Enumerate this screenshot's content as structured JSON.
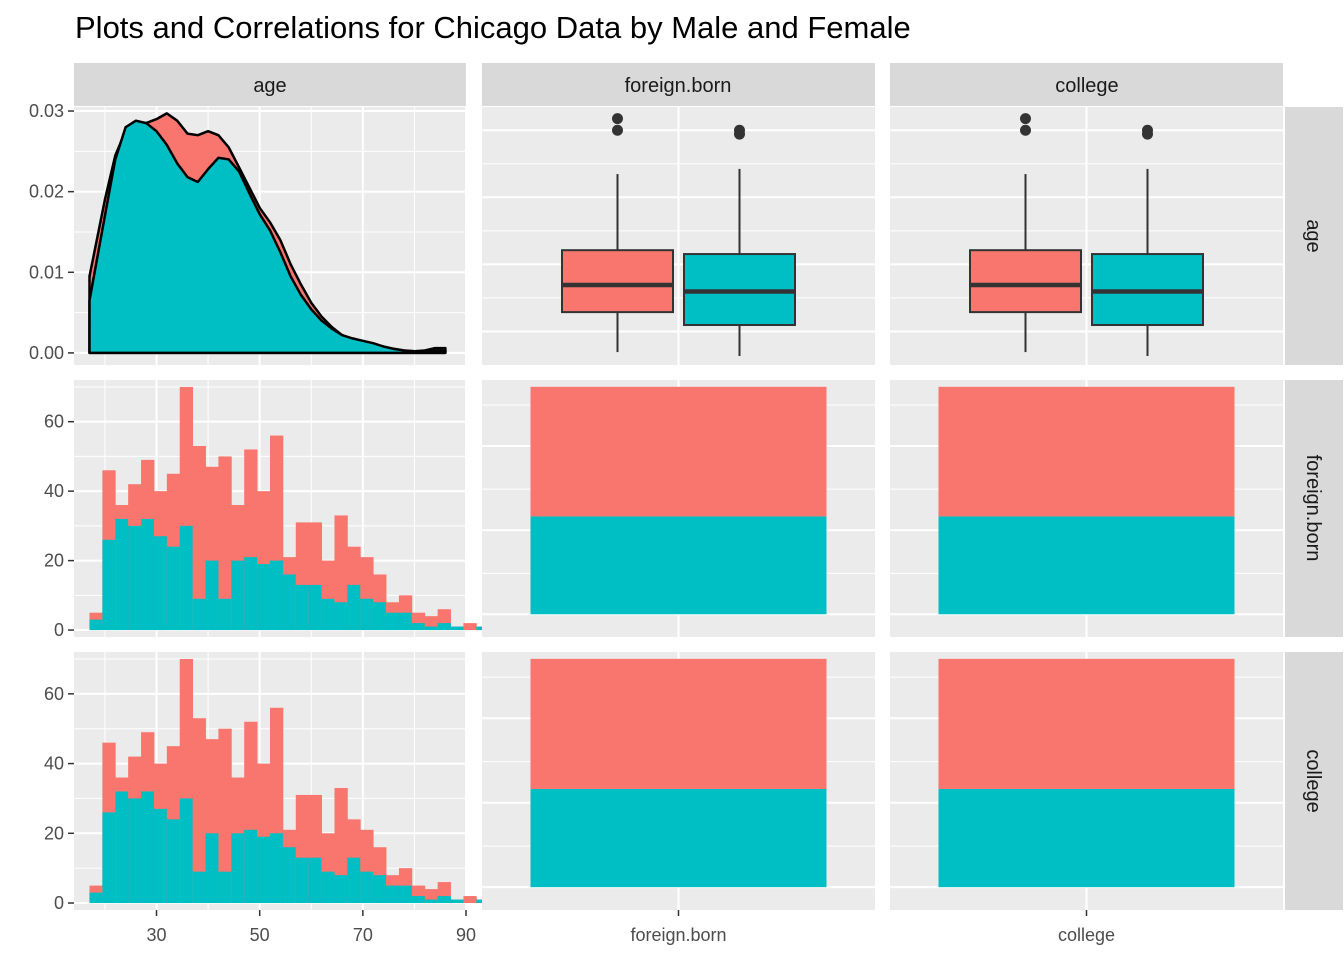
{
  "chart_data": {
    "type": "pairs-matrix",
    "title": "Plots and Correlations for Chicago Data by Male and Female",
    "variables": [
      "age",
      "foreign.born",
      "college"
    ],
    "colors": {
      "red": "#F8766D",
      "teal": "#00BFC4",
      "panel_bg": "#EBEBEB",
      "strip_bg": "#D9D9D9",
      "grid": "#FFFFFF"
    },
    "x_ticks": [
      "30",
      "50",
      "70",
      "90"
    ],
    "x_tick_values": [
      30,
      50,
      70,
      90
    ],
    "x_range": [
      14,
      90
    ],
    "bottom_labels": [
      "foreign.born",
      "college"
    ],
    "density": {
      "ylim": [
        -0.0015,
        0.0305
      ],
      "y_ticks": [
        "0.00",
        "0.01",
        "0.02",
        "0.03"
      ],
      "y_tick_values": [
        0,
        0.01,
        0.02,
        0.03
      ],
      "x": [
        17,
        20,
        22,
        24,
        26,
        28,
        30,
        32,
        34,
        36,
        38,
        40,
        42,
        44,
        46,
        48,
        50,
        52,
        54,
        56,
        58,
        60,
        62,
        64,
        66,
        68,
        70,
        72,
        74,
        76,
        78,
        80,
        82,
        84,
        86
      ],
      "series": [
        {
          "color": "red",
          "values": [
            0.0095,
            0.019,
            0.0245,
            0.0275,
            0.0285,
            0.0285,
            0.029,
            0.0297,
            0.0288,
            0.0272,
            0.027,
            0.0275,
            0.027,
            0.0255,
            0.023,
            0.0205,
            0.018,
            0.0162,
            0.014,
            0.011,
            0.0085,
            0.0062,
            0.0045,
            0.0032,
            0.0022,
            0.0017,
            0.0013,
            0.001,
            0.0007,
            0.0005,
            0.0003,
            0.0002,
            0.0003,
            0.0006,
            0.0006
          ]
        },
        {
          "color": "teal",
          "values": [
            0.0065,
            0.017,
            0.024,
            0.028,
            0.0288,
            0.0285,
            0.0275,
            0.0258,
            0.0235,
            0.0218,
            0.0212,
            0.0228,
            0.0242,
            0.024,
            0.0225,
            0.0198,
            0.0172,
            0.0152,
            0.0125,
            0.0095,
            0.0072,
            0.0054,
            0.004,
            0.003,
            0.0022,
            0.0018,
            0.0015,
            0.0012,
            0.0008,
            0.0005,
            0.0003,
            0.0002,
            0.0002,
            0.0003,
            0.0003
          ]
        }
      ]
    },
    "histogram": {
      "ylim": [
        -2,
        72
      ],
      "y_ticks": [
        "0",
        "20",
        "40",
        "60"
      ],
      "y_tick_values": [
        0,
        20,
        40,
        60
      ],
      "bin_start": 17,
      "bin_width": 2.5,
      "red_total": [
        5,
        46,
        36,
        42,
        49,
        40,
        45,
        70,
        53,
        47,
        50,
        36,
        52,
        40,
        56,
        21,
        31,
        31,
        20,
        33,
        24,
        21,
        16,
        8,
        10,
        5,
        4,
        6,
        1,
        2,
        1,
        1,
        0,
        1,
        0,
        1,
        0,
        1,
        0,
        2
      ],
      "teal": [
        3,
        26,
        32,
        30,
        32,
        27,
        24,
        30,
        9,
        20,
        9,
        20,
        21,
        19,
        20,
        16,
        13,
        13,
        9,
        8,
        13,
        9,
        8,
        5,
        5,
        2,
        1,
        2,
        1,
        0,
        1,
        1,
        0,
        1,
        0,
        1,
        0,
        0,
        0,
        0
      ]
    },
    "boxplot": {
      "ylim": [
        0,
        1
      ],
      "boxes": [
        {
          "color": "red",
          "whisker_low": 0.05,
          "q1": 0.205,
          "median": 0.31,
          "q3": 0.445,
          "whisker_high": 0.74,
          "outliers": [
            0.91,
            0.955
          ]
        },
        {
          "color": "teal",
          "whisker_low": 0.035,
          "q1": 0.155,
          "median": 0.285,
          "q3": 0.43,
          "whisker_high": 0.76,
          "outliers": [
            0.895,
            0.91
          ]
        }
      ]
    },
    "stacked_bar": {
      "ylim": [
        -0.1,
        1.03
      ],
      "teal_fraction": 0.43,
      "red_fraction": 0.57
    }
  }
}
